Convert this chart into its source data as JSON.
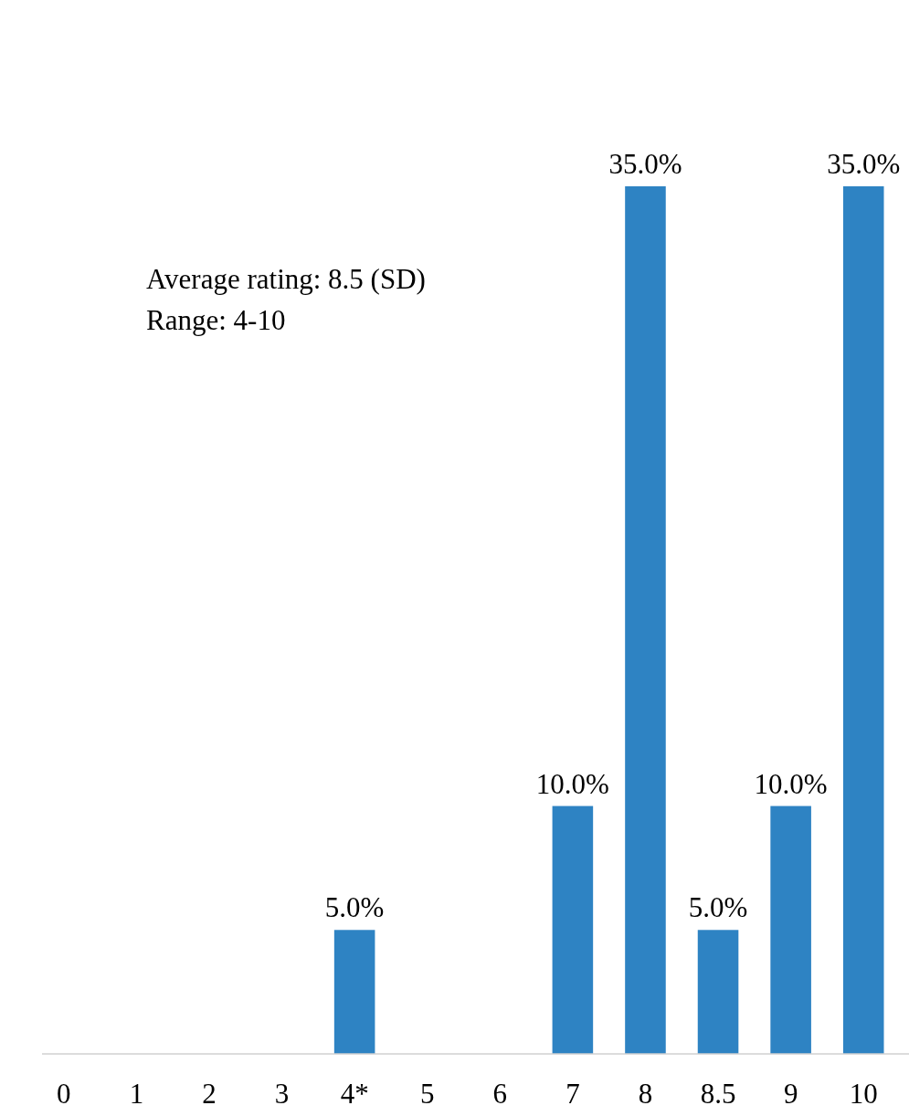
{
  "chart_data": {
    "type": "bar",
    "categories": [
      "0",
      "1",
      "2",
      "3",
      "4*",
      "5",
      "6",
      "7",
      "8",
      "8.5",
      "9",
      "10"
    ],
    "values": [
      0,
      0,
      0,
      0,
      5,
      0,
      0,
      10,
      35,
      5,
      10,
      35
    ],
    "value_labels": [
      null,
      null,
      null,
      null,
      "5.0%",
      null,
      null,
      "10.0%",
      "35.0%",
      "5.0%",
      "10.0%",
      "35.0%"
    ],
    "color": "#2e83c3",
    "annotations": [
      "Average rating: 8.5 (SD)",
      "Range: 4-10"
    ]
  }
}
